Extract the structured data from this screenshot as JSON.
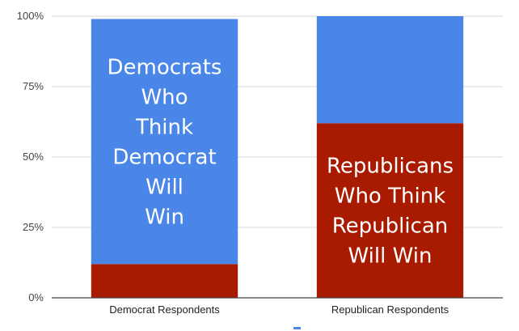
{
  "chart_data": {
    "type": "bar",
    "stacked": true,
    "categories": [
      "Democrat Respondents",
      "Republican Respondents"
    ],
    "series": [
      {
        "color": "#a81b00",
        "values": [
          12,
          62
        ]
      },
      {
        "color": "#4a86e8",
        "values": [
          87,
          38
        ]
      }
    ],
    "ylim": [
      0,
      100
    ],
    "yticks": [
      "0%",
      "25%",
      "50%",
      "75%",
      "100%"
    ],
    "grid": true,
    "annotations": [
      {
        "category": 0,
        "series": 1,
        "lines": [
          "Democrats",
          "Who",
          "Think",
          "Democrat",
          "Will",
          "Win"
        ]
      },
      {
        "category": 1,
        "series": 0,
        "lines": [
          "Republicans",
          "Who Think",
          "Republican",
          "Will Win"
        ]
      }
    ]
  }
}
